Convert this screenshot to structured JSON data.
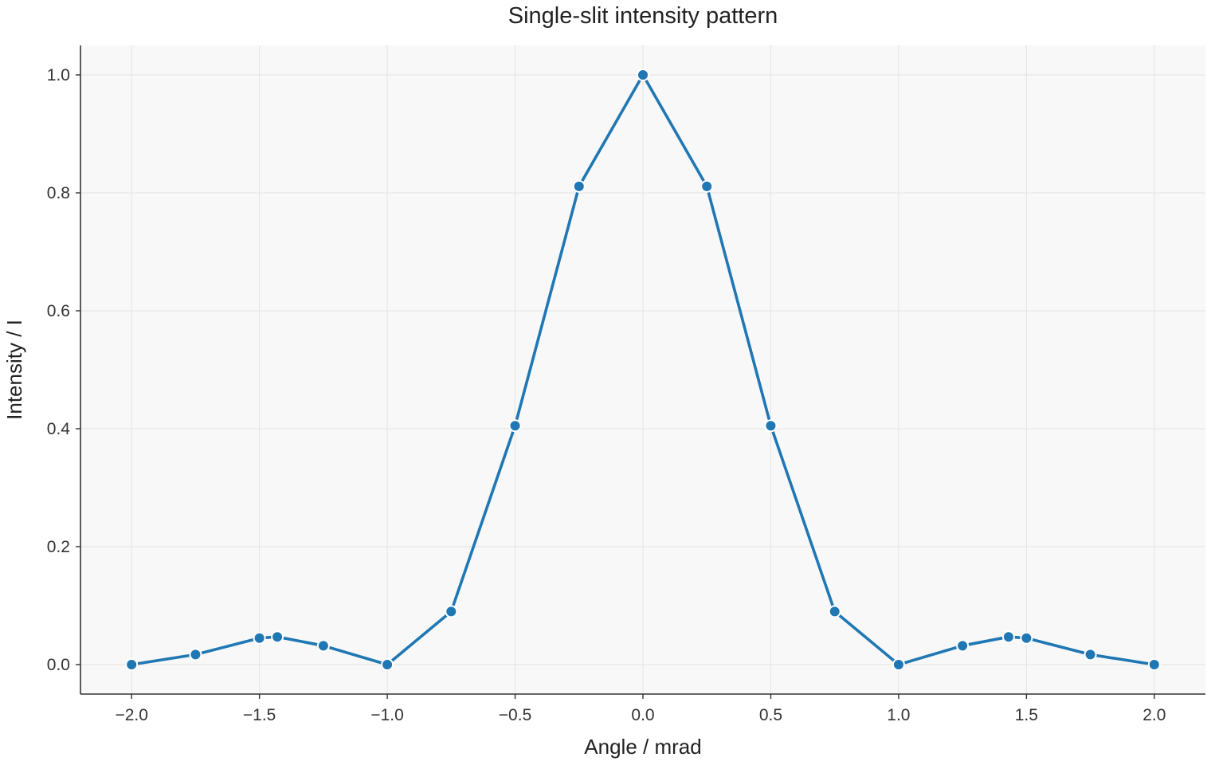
{
  "chart_data": {
    "type": "line",
    "title": "Single-slit intensity pattern",
    "xlabel": "Angle / mrad",
    "ylabel": "Intensity / I",
    "xlim": [
      -2.2,
      2.2
    ],
    "ylim": [
      -0.05,
      1.05
    ],
    "xticks": [
      -2.0,
      -1.5,
      -1.0,
      -0.5,
      0.0,
      0.5,
      1.0,
      1.5,
      2.0
    ],
    "xtick_labels": [
      "−2.0",
      "−1.5",
      "−1.0",
      "−0.5",
      "0.0",
      "0.5",
      "1.0",
      "1.5",
      "2.0"
    ],
    "yticks": [
      0.0,
      0.2,
      0.4,
      0.6,
      0.8,
      1.0
    ],
    "ytick_labels": [
      "0.0",
      "0.2",
      "0.4",
      "0.6",
      "0.8",
      "1.0"
    ],
    "grid": true,
    "series": [
      {
        "color": "#1f77b4",
        "x": [
          -2.0,
          -1.75,
          -1.5,
          -1.43,
          -1.25,
          -1.0,
          -0.75,
          -0.5,
          -0.25,
          0.0,
          0.25,
          0.5,
          0.75,
          1.0,
          1.25,
          1.43,
          1.5,
          1.75,
          2.0
        ],
        "y": [
          0.0,
          0.017,
          0.045,
          0.047,
          0.032,
          0.0,
          0.09,
          0.405,
          0.811,
          1.0,
          0.811,
          0.405,
          0.09,
          0.0,
          0.032,
          0.047,
          0.045,
          0.017,
          0.0
        ]
      }
    ]
  }
}
